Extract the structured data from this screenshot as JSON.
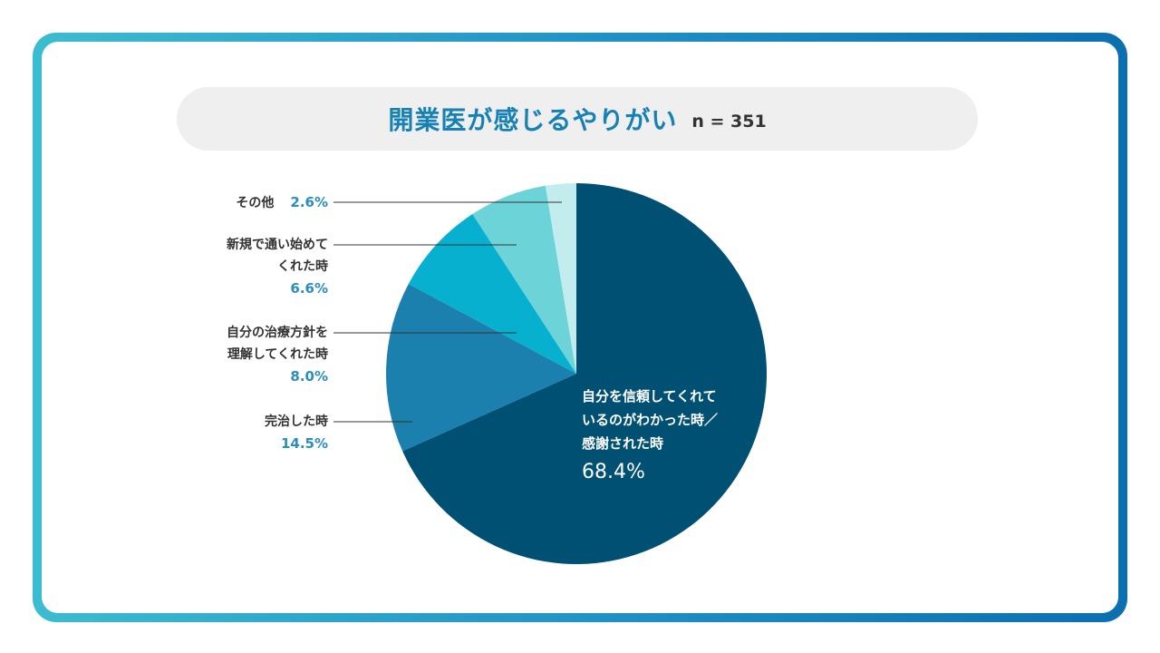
{
  "header": {
    "title": "開業医が感じるやりがい",
    "n_label": "n = 351"
  },
  "colors": {
    "frame_start": "#3cbcd0",
    "frame_end": "#0b6fb0",
    "title": "#1581b4",
    "percent_text": "#2a8ec0"
  },
  "chart_data": {
    "type": "pie",
    "title": "開業医が感じるやりがい",
    "n": 351,
    "start_angle_deg": 0,
    "direction": "clockwise",
    "slices": [
      {
        "line1": "自分を信頼してくれて",
        "line2": "いるのがわかった時／",
        "line3": "感謝された時",
        "value": 68.4,
        "value_label": "68.4%",
        "color": "#005073"
      },
      {
        "line1": "完治した時",
        "value": 14.5,
        "value_label": "14.5%",
        "color": "#1b80ae"
      },
      {
        "line1": "自分の治療方針を",
        "line2": "理解してくれた時",
        "value": 8.0,
        "value_label": "8.0%",
        "color": "#08b0d0"
      },
      {
        "line1": "新規で通い始めて",
        "line2": "くれた時",
        "value": 6.6,
        "value_label": "6.6%",
        "color": "#6cd3d9"
      },
      {
        "line1": "その他",
        "value": 2.6,
        "value_label": "2.6%",
        "color": "#c3ecee"
      }
    ]
  }
}
